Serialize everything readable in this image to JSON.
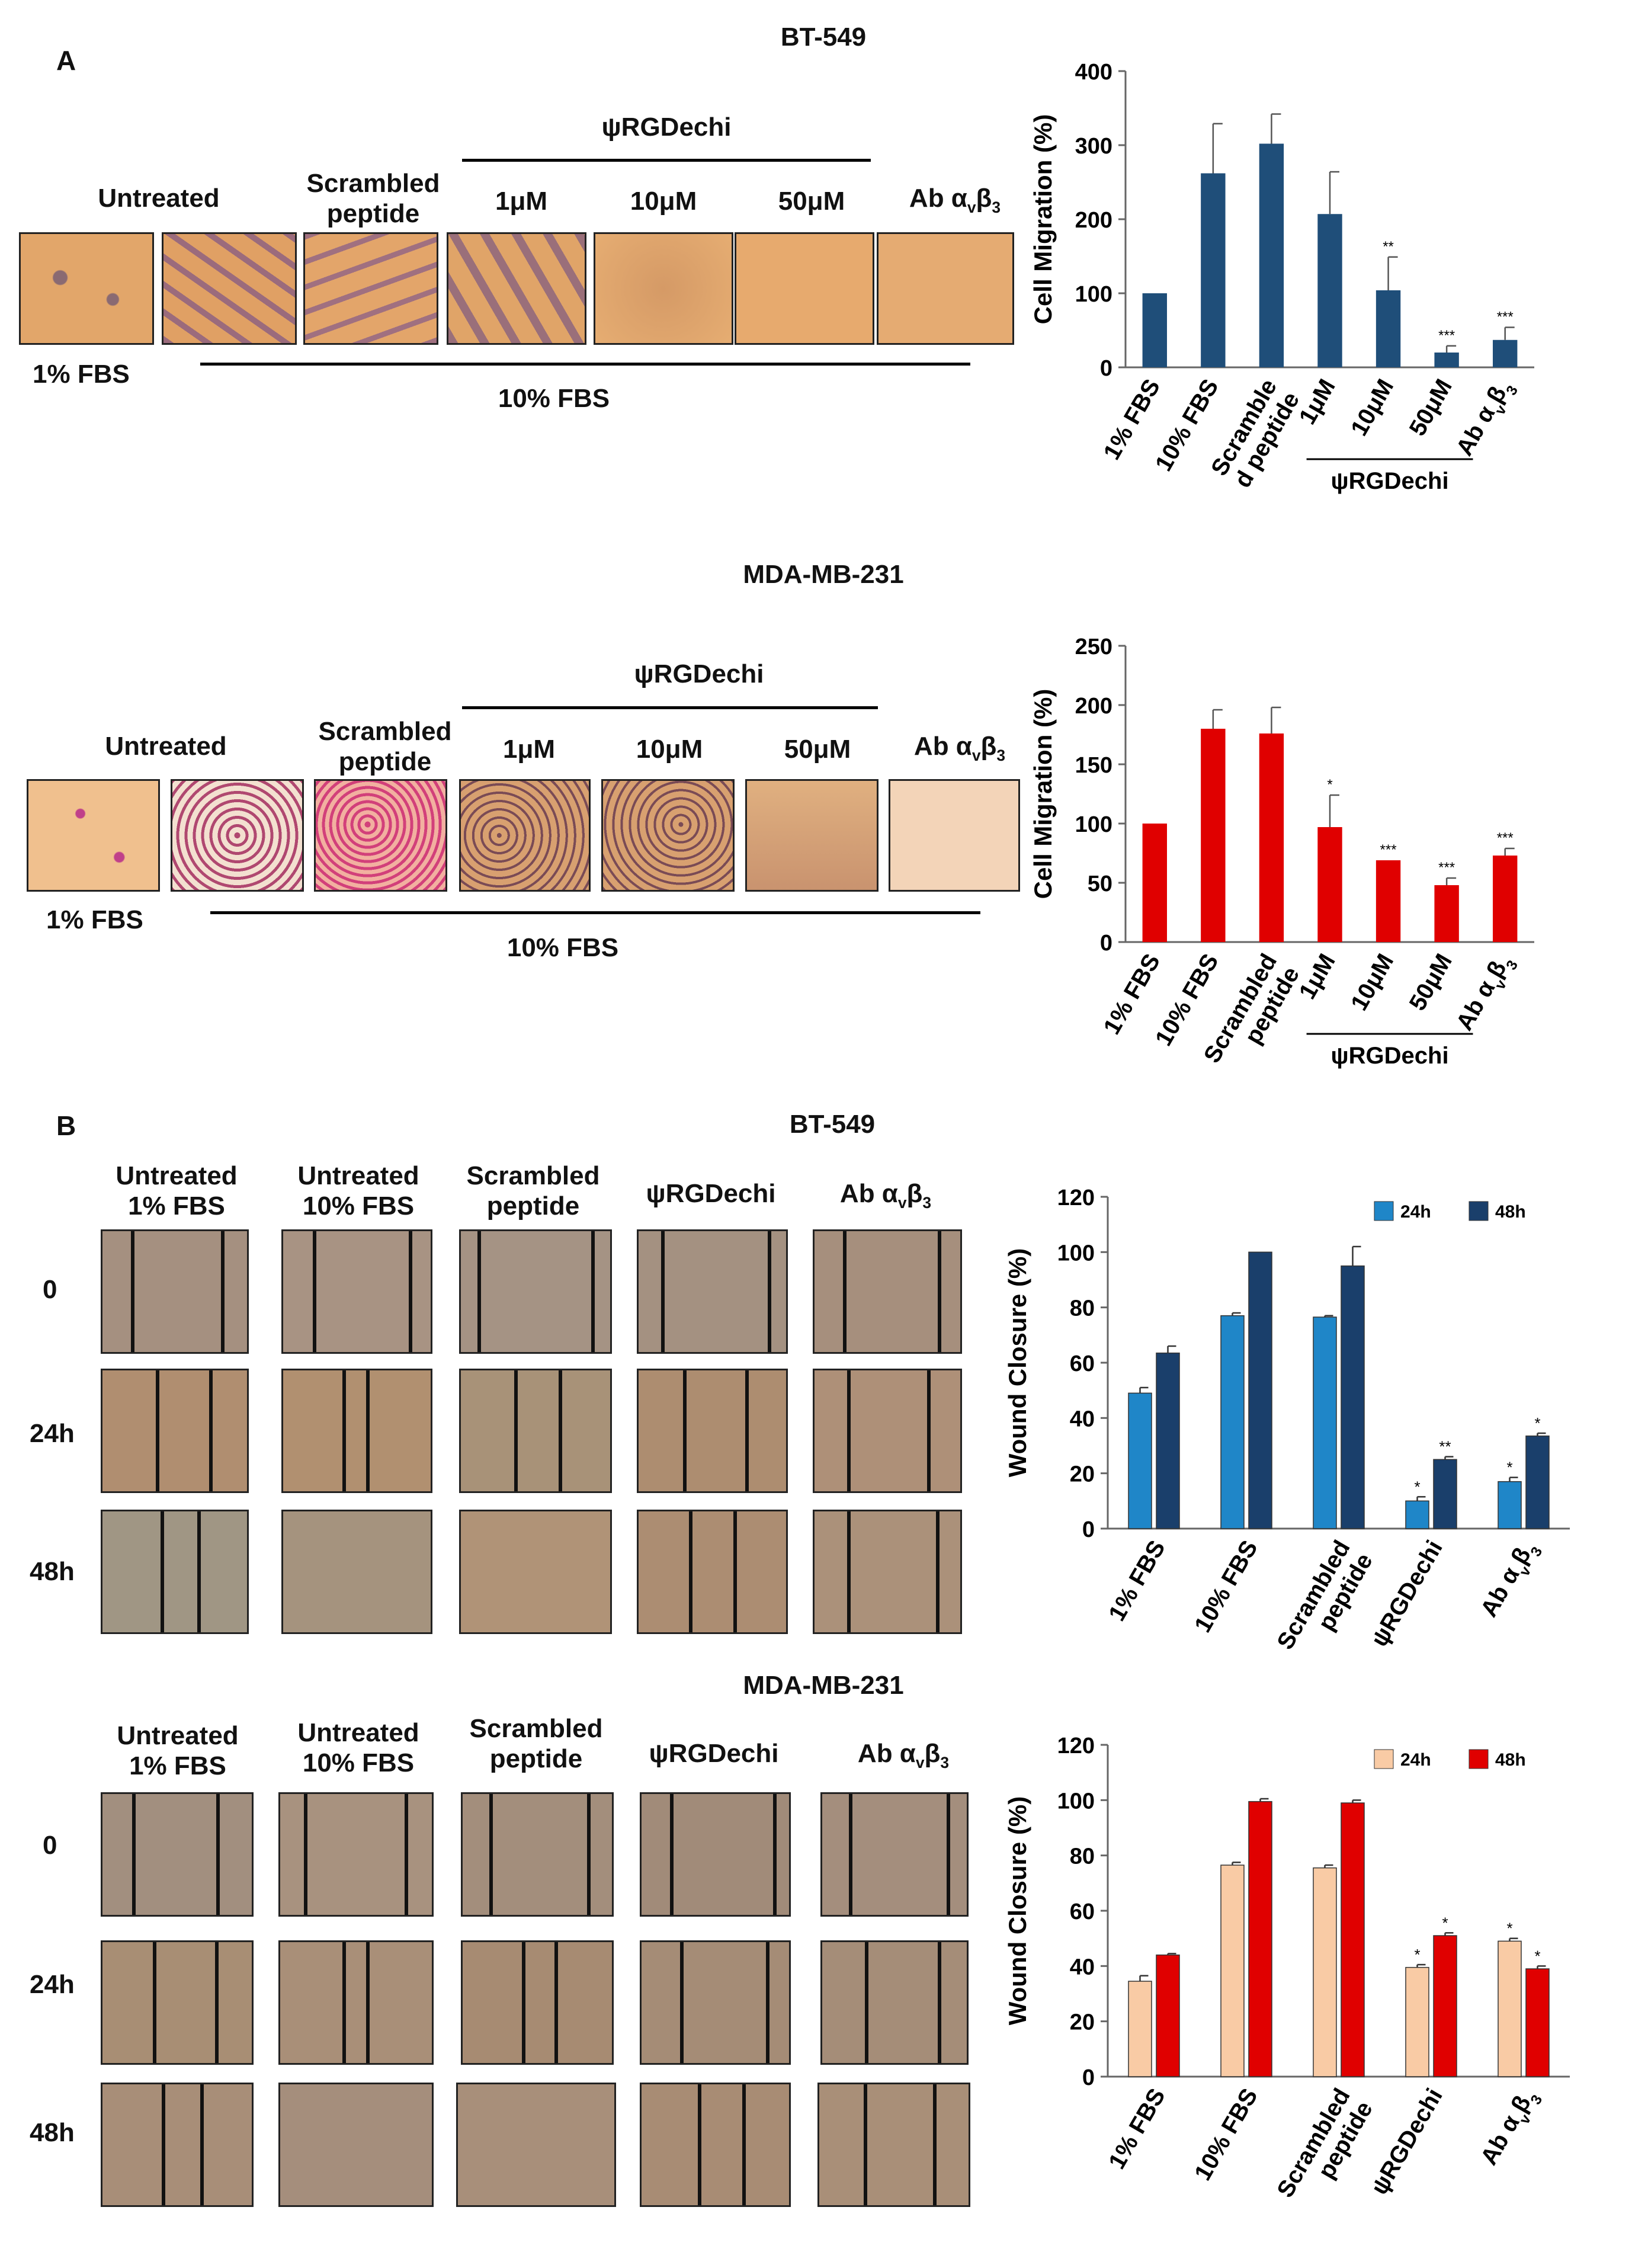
{
  "panel_a": {
    "label": "A",
    "bt549": {
      "title": "BT-549",
      "group_label": "ψRGDechi",
      "headers": [
        "Untreated",
        "Scrambled\npeptide",
        "1μM",
        "10μM",
        "50μM",
        "Ab αvβ3"
      ],
      "bottom_label_1": "1% FBS",
      "bottom_label_10": "10% FBS"
    },
    "mda": {
      "title": "MDA-MB-231",
      "group_label": "ψRGDechi",
      "headers": [
        "Untreated",
        "Scrambled\npeptide",
        "1μM",
        "10μM",
        "50μM",
        "Ab αvβ3"
      ],
      "bottom_label_1": "1% FBS",
      "bottom_label_10": "10% FBS"
    }
  },
  "panel_b": {
    "label": "B",
    "bt549": {
      "title": "BT-549",
      "headers": [
        "Untreated\n1% FBS",
        "Untreated\n10% FBS",
        "Scrambled\npeptide",
        "ψRGDechi",
        "Ab αvβ3"
      ],
      "rows": [
        "0",
        "24h",
        "48h"
      ]
    },
    "mda": {
      "title": "MDA-MB-231",
      "headers": [
        "Untreated\n1% FBS",
        "Untreated\n10% FBS",
        "Scrambled\npeptide",
        "ψRGDechi",
        "Ab αvβ3"
      ],
      "rows": [
        "0",
        "24h",
        "48h"
      ]
    }
  },
  "chart_data": [
    {
      "type": "bar",
      "id": "bt549_migration",
      "ylabel": "Cell Migration (%)",
      "ylim": [
        0,
        400
      ],
      "yticks": [
        0,
        100,
        200,
        300,
        400
      ],
      "categories": [
        "1% FBS",
        "10% FBS",
        "Scramble\nd peptide",
        "1μM",
        "10μM",
        "50μM",
        "Ab αvβ3"
      ],
      "values": [
        100,
        262,
        302,
        207,
        104,
        20,
        37
      ],
      "errors": [
        0,
        67,
        40,
        57,
        45,
        9,
        17
      ],
      "significance": [
        "",
        "",
        "",
        "",
        "**",
        "***",
        "***"
      ],
      "group_label": "ψRGDechi",
      "color": "#1f4e79"
    },
    {
      "type": "bar",
      "id": "mda_migration",
      "ylabel": "Cell Migration (%)",
      "ylim": [
        0,
        250
      ],
      "yticks": [
        0,
        50,
        100,
        150,
        200,
        250
      ],
      "categories": [
        "1% FBS",
        "10% FBS",
        "Scrambled\npeptide",
        "1μM",
        "10μM",
        "50μM",
        "Ab αvβ3"
      ],
      "values": [
        100,
        180,
        176,
        97,
        69,
        48,
        73
      ],
      "errors": [
        0,
        16,
        22,
        27,
        0,
        6,
        6
      ],
      "significance": [
        "",
        "",
        "",
        "*",
        "***",
        "***",
        "***"
      ],
      "group_label": "ψRGDechi",
      "color": "#e00000"
    },
    {
      "type": "bar",
      "id": "bt549_wound",
      "ylabel": "Wound Closure (%)",
      "ylim": [
        0,
        120
      ],
      "yticks": [
        0,
        20,
        40,
        60,
        80,
        100,
        120
      ],
      "categories": [
        "1% FBS",
        "10% FBS",
        "Scrambled\npeptide",
        "ψRGDechi",
        "Ab αvβ3"
      ],
      "series": [
        {
          "name": "24h",
          "values": [
            49,
            77,
            76.5,
            10,
            17
          ],
          "errors": [
            2,
            1,
            0.5,
            1.5,
            1.5
          ],
          "significance": [
            "",
            "",
            "",
            "*",
            "*"
          ],
          "color": "#1f86c8"
        },
        {
          "name": "48h",
          "values": [
            63.5,
            100,
            95,
            25,
            33.5
          ],
          "errors": [
            2.5,
            0,
            7,
            1,
            1
          ],
          "significance": [
            "",
            "",
            "",
            "**",
            "*"
          ],
          "color": "#1a3f6b"
        }
      ]
    },
    {
      "type": "bar",
      "id": "mda_wound",
      "ylabel": "Wound Closure (%)",
      "ylim": [
        0,
        120
      ],
      "yticks": [
        0,
        20,
        40,
        60,
        80,
        100,
        120
      ],
      "categories": [
        "1% FBS",
        "10% FBS",
        "Scrambled\npeptide",
        "ψRGDechi",
        "Ab αvβ3"
      ],
      "series": [
        {
          "name": "24h",
          "values": [
            34.5,
            76.5,
            75.5,
            39.5,
            49
          ],
          "errors": [
            2,
            1,
            1,
            1,
            1
          ],
          "significance": [
            "",
            "",
            "",
            "*",
            "*"
          ],
          "color": "#f9cba5"
        },
        {
          "name": "48h",
          "values": [
            44,
            99.5,
            99,
            51,
            39
          ],
          "errors": [
            0.5,
            1,
            1,
            1,
            1
          ],
          "significance": [
            "",
            "",
            "",
            "*",
            "*"
          ],
          "color": "#e00000"
        }
      ]
    }
  ]
}
